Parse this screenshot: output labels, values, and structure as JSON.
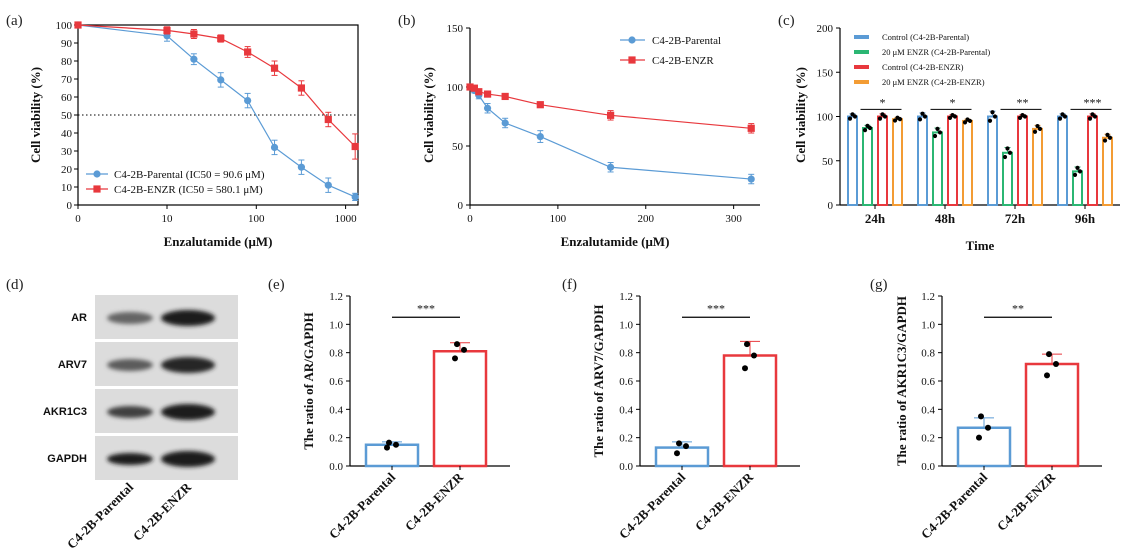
{
  "colors": {
    "blue": "#5b9bd5",
    "red": "#e8383d",
    "green": "#2bb673",
    "orange": "#f39c34",
    "axis": "#000000"
  },
  "chart_data": [
    {
      "id": "a",
      "panel_label": "(a)",
      "type": "line",
      "xlabel": "Enzalutamide (μM)",
      "ylabel": "Cell viability (%)",
      "xscale": "log",
      "ylim": [
        0,
        100
      ],
      "xticks": [
        "0",
        "10",
        "100",
        "1000"
      ],
      "yticks": [
        "0",
        "10",
        "20",
        "30",
        "40",
        "50",
        "60",
        "70",
        "80",
        "90",
        "100"
      ],
      "reference_line": 50,
      "series": [
        {
          "name": "C4-2B-Parental (IC50 = 90.6 μM)",
          "color": "#5b9bd5",
          "marker": "circle",
          "x": [
            0,
            10,
            20,
            40,
            80,
            160,
            320,
            640,
            1280
          ],
          "y": [
            100,
            94,
            81,
            69.5,
            58,
            32,
            21,
            11,
            4.5
          ],
          "err": [
            1.5,
            3,
            3,
            4,
            4,
            4,
            4,
            4,
            2
          ]
        },
        {
          "name": "C4-2B-ENZR  (IC50 = 580.1 μM)",
          "color": "#e8383d",
          "marker": "square",
          "x": [
            0,
            10,
            20,
            40,
            80,
            160,
            320,
            640,
            1280
          ],
          "y": [
            100,
            97,
            95,
            92.5,
            85,
            76,
            65,
            47.5,
            32.5
          ],
          "err": [
            1.5,
            2,
            2.5,
            2,
            3,
            4,
            4,
            4,
            7
          ]
        }
      ]
    },
    {
      "id": "b",
      "panel_label": "(b)",
      "type": "line",
      "xlabel": "Enzalutamide (μM)",
      "ylabel": "Cell viability (%)",
      "xlim": [
        0,
        330
      ],
      "ylim": [
        0,
        150
      ],
      "xticks": [
        "0",
        "100",
        "200",
        "300"
      ],
      "yticks": [
        "0",
        "50",
        "100",
        "150"
      ],
      "series": [
        {
          "name": "C4-2B-Parental",
          "color": "#5b9bd5",
          "marker": "circle",
          "x": [
            0,
            5,
            10,
            20,
            40,
            80,
            160,
            320
          ],
          "y": [
            100,
            97,
            93,
            82,
            69.5,
            58,
            32,
            22
          ],
          "err": [
            2,
            2,
            3,
            4,
            4,
            5,
            4,
            4
          ]
        },
        {
          "name": "C4-2B-ENZR",
          "color": "#e8383d",
          "marker": "square",
          "x": [
            0,
            5,
            10,
            20,
            40,
            80,
            160,
            320
          ],
          "y": [
            100,
            99,
            96,
            94,
            92,
            85,
            76,
            65
          ],
          "err": [
            2,
            2,
            2,
            2,
            2,
            2,
            4,
            4
          ]
        }
      ]
    },
    {
      "id": "c",
      "panel_label": "(c)",
      "type": "bar",
      "xlabel": "Time",
      "ylabel": "Cell viability (%)",
      "ylim": [
        0,
        200
      ],
      "categories": [
        "24h",
        "48h",
        "72h",
        "96h"
      ],
      "yticks": [
        "0",
        "50",
        "100",
        "150",
        "200"
      ],
      "significance": [
        "*",
        "*",
        "**",
        "***"
      ],
      "series": [
        {
          "name": "Control (C4-2B-Parental)",
          "color": "#5b9bd5",
          "values": [
            100,
            100,
            100,
            100
          ],
          "err": [
            3,
            4,
            6,
            3
          ]
        },
        {
          "name": "20 μM ENZR (C4-2B-Parental)",
          "color": "#2bb673",
          "values": [
            87,
            82,
            59,
            38
          ],
          "err": [
            3,
            5,
            6,
            5
          ]
        },
        {
          "name": "Control (C4-2B-ENZR)",
          "color": "#e8383d",
          "values": [
            100,
            100,
            100,
            100
          ],
          "err": [
            3,
            2,
            2,
            3
          ]
        },
        {
          "name": "20 μM ENZR (C4-2B-ENZR)",
          "color": "#f39c34",
          "values": [
            97,
            95,
            86,
            76
          ],
          "err": [
            2,
            2,
            4,
            4
          ]
        }
      ]
    },
    {
      "id": "e",
      "panel_label": "(e)",
      "type": "bar",
      "ylabel": "The ratio of AR/GAPDH",
      "ylim": [
        0,
        1.2
      ],
      "categories": [
        "C4-2B-Parental",
        "C4-2B-ENZR"
      ],
      "yticks": [
        "0.0",
        "0.2",
        "0.4",
        "0.6",
        "0.8",
        "1.0",
        "1.2"
      ],
      "colors": [
        "#5b9bd5",
        "#e8383d"
      ],
      "values": [
        0.15,
        0.81
      ],
      "err": [
        0.02,
        0.06
      ],
      "points": [
        [
          0.13,
          0.15,
          0.165
        ],
        [
          0.76,
          0.82,
          0.86
        ]
      ],
      "significance": "***"
    },
    {
      "id": "f",
      "panel_label": "(f)",
      "type": "bar",
      "ylabel": "The ratio of ARV7/GAPDH",
      "ylim": [
        0,
        1.2
      ],
      "categories": [
        "C4-2B-Parental",
        "C4-2B-ENZR"
      ],
      "yticks": [
        "0.0",
        "0.2",
        "0.4",
        "0.6",
        "0.8",
        "1.0",
        "1.2"
      ],
      "colors": [
        "#5b9bd5",
        "#e8383d"
      ],
      "values": [
        0.13,
        0.78
      ],
      "err": [
        0.04,
        0.1
      ],
      "points": [
        [
          0.09,
          0.14,
          0.16
        ],
        [
          0.69,
          0.78,
          0.86
        ]
      ],
      "significance": "***"
    },
    {
      "id": "g",
      "panel_label": "(g)",
      "type": "bar",
      "ylabel": "The ratio of AKR1C3/GAPDH",
      "ylim": [
        0,
        1.2
      ],
      "categories": [
        "C4-2B-Parental",
        "C4-2B-ENZR"
      ],
      "yticks": [
        "0.0",
        "0.2",
        "0.4",
        "0.6",
        "0.8",
        "1.0",
        "1.2"
      ],
      "colors": [
        "#5b9bd5",
        "#e8383d"
      ],
      "values": [
        0.27,
        0.72
      ],
      "err": [
        0.07,
        0.07
      ],
      "points": [
        [
          0.2,
          0.27,
          0.35
        ],
        [
          0.64,
          0.72,
          0.79
        ]
      ],
      "significance": "**"
    }
  ],
  "blot": {
    "panel_label": "(d)",
    "rows": [
      "AR",
      "ARV7",
      "AKR1C3",
      "GAPDH"
    ],
    "lanes": [
      "C4-2B-Parental",
      "C4-2B-ENZR"
    ]
  }
}
